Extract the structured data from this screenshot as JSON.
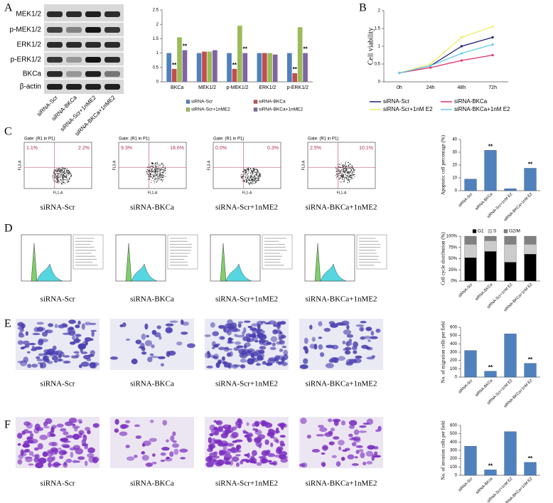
{
  "panel_labels": [
    "A",
    "B",
    "C",
    "D",
    "E",
    "F"
  ],
  "blot": {
    "proteins": [
      "MEK1/2",
      "p-MEK1/2",
      "ERK1/2",
      "p-ERK1/2",
      "BKCa",
      "β-actin"
    ],
    "lanes": [
      "siRNA-Scr",
      "siRNA-BKCa",
      "siRNA-Scr+1nME2",
      "siRNA-BKCa+1nME2"
    ]
  },
  "flow_plots": [
    {
      "gate": "Gate: (R1 in P1)",
      "ul_pct": "1.1%",
      "ur_pct": "2.2%"
    },
    {
      "gate": "Gate: (R1 in P1)",
      "ul_pct": "9.3%",
      "ur_pct": "18.6%"
    },
    {
      "gate": "Gate: (R1 in P1)",
      "ul_pct": "0.0%",
      "ur_pct": "0.3%"
    },
    {
      "gate": "Gate: (R1 in P1)",
      "ul_pct": "2.5%",
      "ur_pct": "10.1%"
    }
  ],
  "flow_axes": {
    "x_label": "FL1-A",
    "y_label": "FL3-A"
  },
  "image_captions": [
    "siRNA-Scr",
    "siRNA-BKCa",
    "siRNA-Scr+1nME2",
    "siRNA-BKCa+1nME2"
  ],
  "chart_data": [
    {
      "type": "bar",
      "categories": [
        "BKCa",
        "MEK1/2",
        "p-MEK1/2",
        "ERK1/2",
        "p-ERK1/2"
      ],
      "series": [
        {
          "name": "siRNA-Scr",
          "color": "#4f81bd",
          "values": [
            1,
            1,
            1,
            1,
            1
          ],
          "significance": [
            null,
            null,
            null,
            null,
            null
          ]
        },
        {
          "name": "siRNA-BKCa",
          "color": "#c0504d",
          "values": [
            0.45,
            1.05,
            0.45,
            1.0,
            0.3
          ],
          "significance": [
            "**",
            null,
            "**",
            null,
            "**"
          ]
        },
        {
          "name": "siRNA-Scr+1nME2",
          "color": "#9bbb59",
          "values": [
            1.55,
            1.05,
            1.95,
            1.0,
            1.9
          ],
          "significance": [
            null,
            null,
            null,
            null,
            null
          ]
        },
        {
          "name": "siRNA-BKCa+1nME2",
          "color": "#8064a2",
          "values": [
            1.1,
            1.1,
            1.0,
            0.95,
            1.0
          ],
          "significance": [
            "**",
            null,
            "**",
            null,
            "**"
          ]
        }
      ],
      "ylim": [
        0,
        2.5
      ],
      "yticks": [
        0,
        0.5,
        1,
        1.5,
        2,
        2.5
      ]
    },
    {
      "type": "line",
      "y_label": "Cell viability",
      "categories": [
        "0h",
        "24h",
        "48h",
        "72h"
      ],
      "series": [
        {
          "name": "siRNA-Scr",
          "color": "#1f1f7a",
          "values": [
            0.25,
            0.45,
            1.0,
            1.25
          ]
        },
        {
          "name": "siRNA-BKCa",
          "color": "#e0306e",
          "values": [
            0.25,
            0.4,
            0.6,
            0.75
          ]
        },
        {
          "name": "siRNA-Scr+1nM E2",
          "color": "#eeee66",
          "values": [
            0.25,
            0.5,
            1.25,
            1.55
          ]
        },
        {
          "name": "siRNA-BKCa+1nM E2",
          "color": "#66ccee",
          "values": [
            0.25,
            0.45,
            0.8,
            1.05
          ]
        }
      ],
      "ylim": [
        0,
        2
      ],
      "yticks": [
        0,
        0.5,
        1,
        1.5,
        2
      ]
    },
    {
      "type": "bar",
      "y_label": "Apoptotic cell percentage (%)",
      "categories": [
        "siRNA-Scr",
        "siRNA-BKCa",
        "siRNA-Scr+1nM E2",
        "siRNA-BKCa+1nM E2"
      ],
      "values": [
        9,
        31.5,
        1.5,
        17.5
      ],
      "significance": [
        null,
        "**",
        null,
        "**"
      ],
      "color": "#4f81bd",
      "ylim": [
        0,
        40
      ],
      "yticks": [
        0,
        10,
        20,
        30,
        40
      ]
    },
    {
      "type": "bar",
      "stacked": true,
      "y_label": "Cell cycle distribution (%)",
      "categories": [
        "siRNA-Scr",
        "siRNA-BKCa",
        "siRNA-Scr+1nM E2",
        "siRNA-BKCa+1nM E2"
      ],
      "series": [
        {
          "name": "G1",
          "color": "#000000",
          "values": [
            52,
            66,
            42,
            60
          ]
        },
        {
          "name": "S",
          "color": "#cccccc",
          "values": [
            30,
            24,
            40,
            22
          ]
        },
        {
          "name": "G2/M",
          "color": "#808080",
          "values": [
            18,
            10,
            18,
            18
          ]
        }
      ],
      "ylim": [
        0,
        100
      ],
      "yticks": [
        {
          "value": 0,
          "label": "0%"
        },
        {
          "value": 25,
          "label": "25%"
        },
        {
          "value": 50,
          "label": "50%"
        },
        {
          "value": 75,
          "label": "75%"
        },
        {
          "value": 100,
          "label": "100%"
        }
      ]
    },
    {
      "type": "bar",
      "y_label": "No. of migration cells per field",
      "categories": [
        "siRNA-Scr",
        "siRNA-BKCa",
        "siRNA-Scr+1nM E2",
        "siRNA-BKCa+1nM E2"
      ],
      "values": [
        320,
        70,
        520,
        165
      ],
      "significance": [
        null,
        "**",
        null,
        "**"
      ],
      "color": "#4f81bd",
      "ylim": [
        0,
        600
      ],
      "yticks": [
        0,
        100,
        200,
        300,
        400,
        500,
        600
      ]
    },
    {
      "type": "bar",
      "y_label": "No. of invasion cells per field",
      "categories": [
        "siRNA-Scr",
        "siRNA-BKca",
        "siRNA-Scr+1nM E2",
        "siRNA-BKCa+1nM E2"
      ],
      "values": [
        350,
        65,
        525,
        155
      ],
      "significance": [
        null,
        "**",
        null,
        "**"
      ],
      "color": "#4f81bd",
      "ylim": [
        0,
        600
      ],
      "yticks": [
        0,
        100,
        200,
        300,
        400,
        500,
        600
      ]
    }
  ]
}
